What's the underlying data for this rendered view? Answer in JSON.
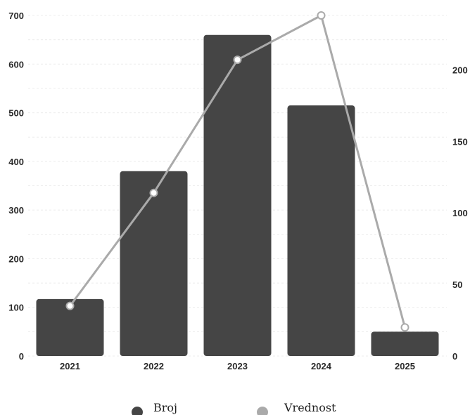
{
  "chart_data": {
    "type": "bar",
    "categories": [
      "2021",
      "2022",
      "2023",
      "2024",
      "2025"
    ],
    "series": [
      {
        "name": "Broj",
        "type": "bar",
        "axis": "left",
        "values": [
          117,
          380,
          660,
          515,
          50
        ],
        "color": "#454545"
      },
      {
        "name": "Vrednost",
        "type": "line",
        "axis": "right",
        "values": [
          35,
          114,
          207,
          238,
          20
        ],
        "color": "#aaaaaa"
      }
    ],
    "y_left": {
      "min": 0,
      "max": 700,
      "ticks": [
        0,
        100,
        200,
        300,
        400,
        500,
        600,
        700
      ]
    },
    "y_right": {
      "min": 0,
      "max": 238,
      "ticks": [
        0,
        50,
        100,
        150,
        200
      ]
    },
    "grid": true,
    "legend_position": "bottom"
  }
}
